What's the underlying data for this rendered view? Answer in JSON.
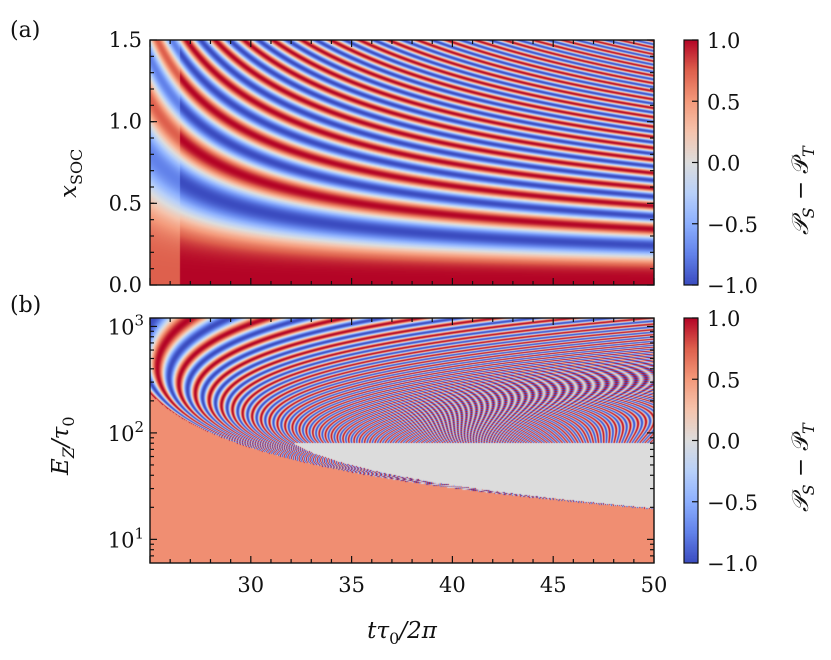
{
  "chart_data": [
    {
      "type": "heatmap",
      "panel_label": "(a)",
      "xlabel": "",
      "ylabel": "x_SOC",
      "ylabel_display": "x",
      "ylabel_sub": "SOC",
      "xlim": [
        25,
        50
      ],
      "ylim": [
        0,
        1.5
      ],
      "xticks": [
        "",
        "",
        "",
        "",
        "",
        ""
      ],
      "xtick_values": [
        25,
        30,
        35,
        40,
        45,
        50
      ],
      "yticks": [
        "0.0",
        "0.5",
        "1.0",
        "1.5"
      ],
      "ytick_values": [
        0,
        0.5,
        1.0,
        1.5
      ],
      "colorbar": {
        "label": "𝒫_S − 𝒫_T",
        "label_display": [
          "𝒫",
          "S",
          " − 𝒫",
          "T"
        ],
        "ticks": [
          "−1.0",
          "−0.5",
          "0.0",
          "0.5",
          "1.0"
        ],
        "tick_values": [
          -1,
          -0.5,
          0,
          0.5,
          1
        ],
        "range": [
          -1,
          1
        ],
        "colormap": "coolwarm"
      },
      "value_description": "cos(phase) with phase growing with time and x_SOC squared; bands curve down toward larger t"
    },
    {
      "type": "heatmap",
      "panel_label": "(b)",
      "xlabel": "tτ0/2π",
      "xlabel_display": [
        "tτ",
        "0",
        "/2π"
      ],
      "ylabel": "E_Z/τ0",
      "ylabel_display": [
        "E",
        "Z",
        "/τ",
        "0"
      ],
      "xlim": [
        25,
        50
      ],
      "ylim": [
        6,
        1200
      ],
      "yscale": "log",
      "xticks": [
        "30",
        "35",
        "40",
        "45",
        "50"
      ],
      "xtick_values": [
        30,
        35,
        40,
        45,
        50
      ],
      "yticks": [
        {
          "base": "10",
          "exp": "1",
          "value": 10
        },
        {
          "base": "10",
          "exp": "2",
          "value": 100
        },
        {
          "base": "10",
          "exp": "3",
          "value": 1000
        }
      ],
      "masked_region_color": "#dcdcdc",
      "masked_below": 80,
      "colorbar": {
        "label": "𝒫_S − 𝒫_T",
        "label_display": [
          "𝒫",
          "S",
          " − 𝒫",
          "T"
        ],
        "ticks": [
          "−1.0",
          "−0.5",
          "0.0",
          "0.5",
          "1.0"
        ],
        "tick_values": [
          -1,
          -0.5,
          0,
          0.5,
          1
        ],
        "range": [
          -1,
          1
        ],
        "colormap": "coolwarm"
      },
      "value_description": "cos(phase) with fringes whose density increases toward low E_Z; grey masked region at low E_Z after onset"
    }
  ]
}
